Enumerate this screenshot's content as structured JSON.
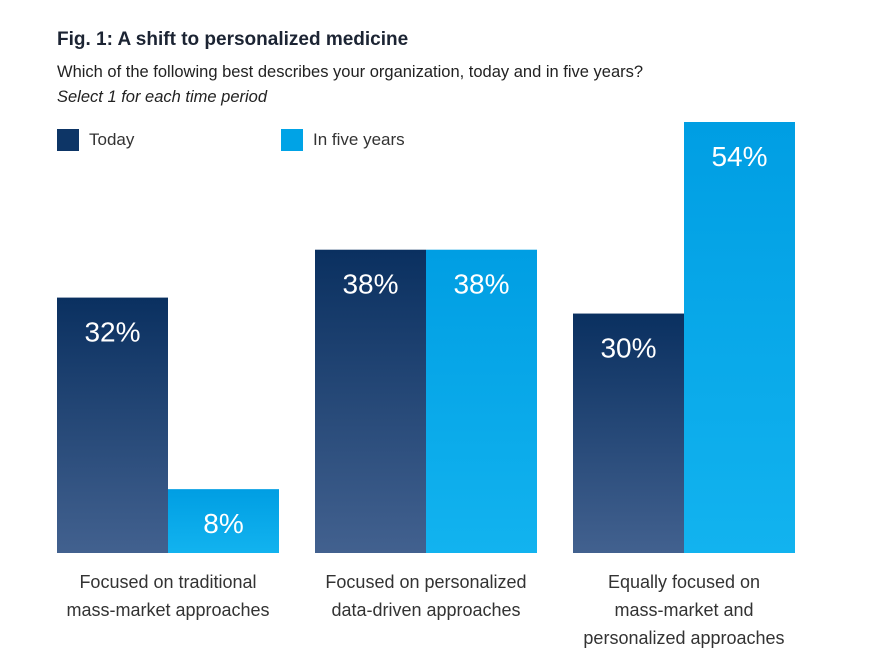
{
  "chart_data": {
    "type": "bar",
    "title": "Fig. 1: A shift to personalized medicine",
    "subtitle": "Which of the following best describes your organization, today and in five years?",
    "note": "Select 1 for each time period",
    "categories": [
      [
        "Focused on traditional",
        "mass-market approaches"
      ],
      [
        "Focused on personalized",
        "data-driven approaches"
      ],
      [
        "Equally focused on",
        "mass-market and",
        "personalized approaches"
      ]
    ],
    "series": [
      {
        "name": "Today",
        "values": [
          32,
          38,
          30
        ],
        "labels": [
          "32%",
          "38%",
          "30%"
        ],
        "color": "#0d3566"
      },
      {
        "name": "In five years",
        "values": [
          8,
          38,
          54
        ],
        "labels": [
          "8%",
          "38%",
          "54%"
        ],
        "color": "#00a3e6"
      }
    ],
    "ylim": [
      0,
      54
    ],
    "legend_position": "top-left",
    "grid": false,
    "unit": "%"
  }
}
